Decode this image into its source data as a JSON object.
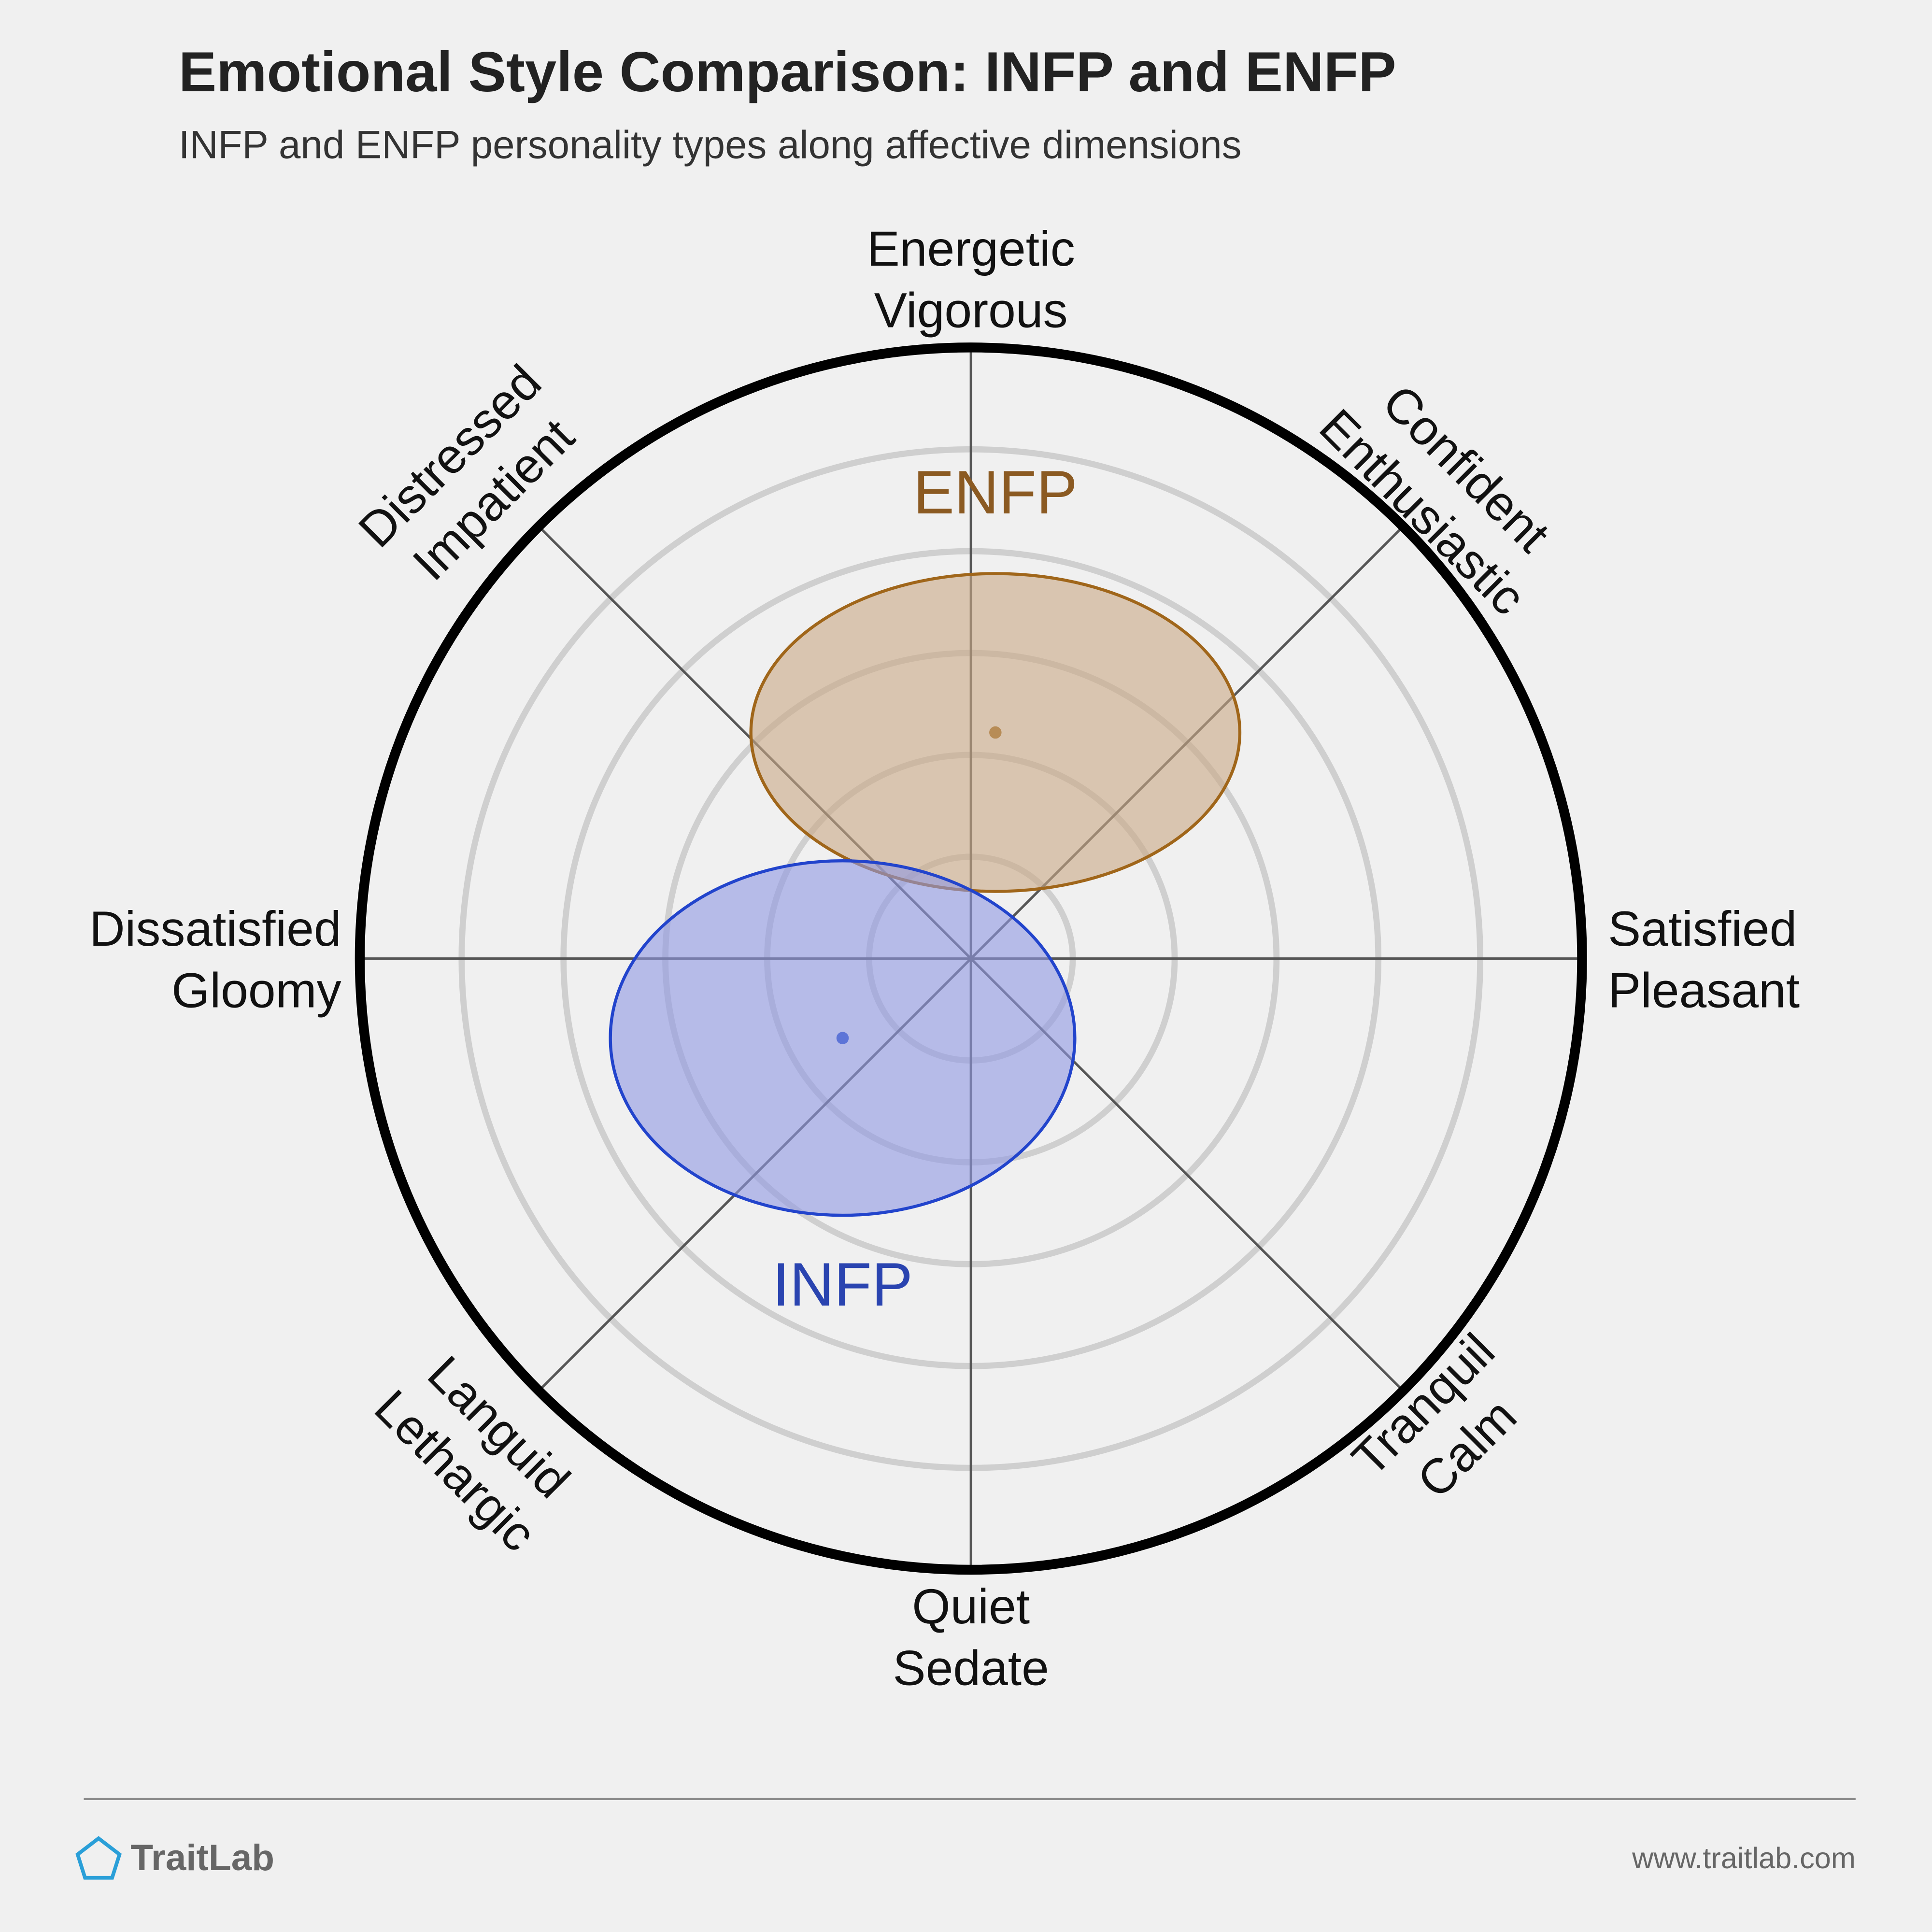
{
  "chart_data": {
    "type": "circumplex",
    "title": "Emotional Style Comparison: INFP and ENFP",
    "subtitle": "INFP and ENFP personality types along affective dimensions",
    "axes": [
      [
        "Energetic",
        "Vigorous"
      ],
      [
        "Confident",
        "Enthusiastic"
      ],
      [
        "Satisfied",
        "Pleasant"
      ],
      [
        "Tranquil",
        "Calm"
      ],
      [
        "Quiet",
        "Sedate"
      ],
      [
        "Languid",
        "Lethargic"
      ],
      [
        "Dissatisfied",
        "Gloomy"
      ],
      [
        "Distressed",
        "Impatient"
      ]
    ],
    "xlim": [
      -1,
      1
    ],
    "ylim": [
      -1,
      1
    ],
    "series": [
      {
        "name": "ENFP",
        "color": "#a0661a",
        "fill": "#c9a985",
        "label_color": "#8b5a22",
        "x": 0.04,
        "y": 0.37,
        "rx": 0.4,
        "ry": 0.26
      },
      {
        "name": "INFP",
        "color": "#2244cc",
        "fill": "#8f98e3",
        "label_color": "#2a44b0",
        "x": -0.21,
        "y": -0.13,
        "rx": 0.38,
        "ry": 0.29
      }
    ],
    "footer": {
      "brand": "TraitLab",
      "url": "www.traitlab.com"
    }
  }
}
